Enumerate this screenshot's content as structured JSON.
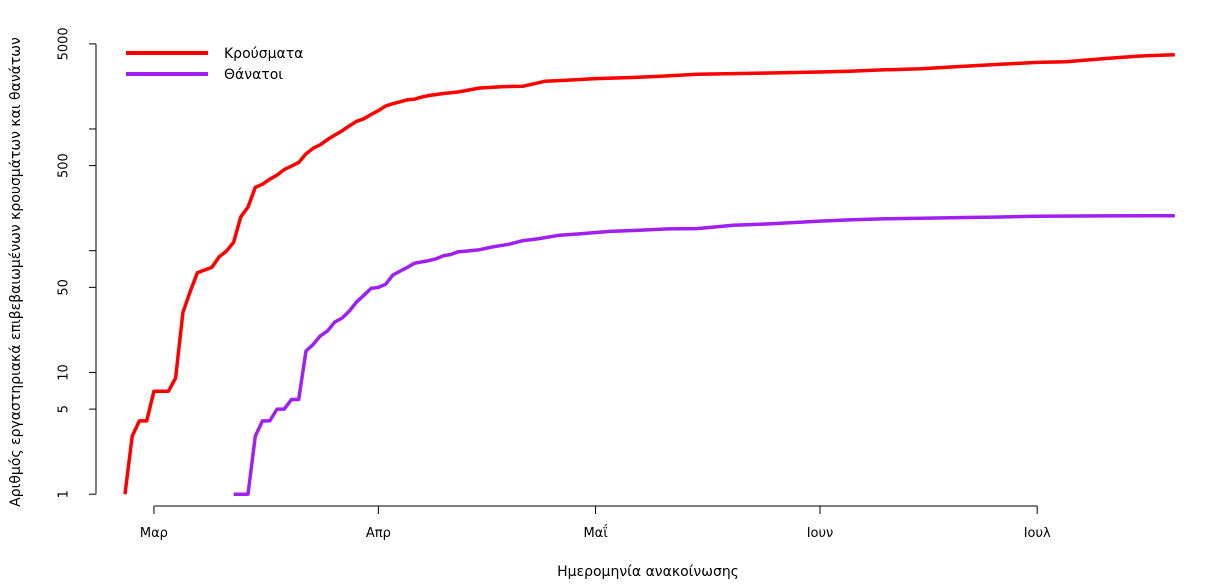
{
  "chart_data": {
    "type": "line",
    "title": "",
    "xlabel": "Ημερομηνία ανακοίνωσης",
    "ylabel": "Αριθμός εργαστηριακά επιβεβαιωμένων κρουσμάτων και θανάτων",
    "y_scale": "log",
    "ylim": [
      0.8,
      6500
    ],
    "xlim": [
      "2020-02-22",
      "2020-07-21"
    ],
    "grid": false,
    "legend_position": "top-left",
    "x_ticks": [
      {
        "date": "2020-03-01",
        "label": "Μαρ"
      },
      {
        "date": "2020-04-01",
        "label": "Απρ"
      },
      {
        "date": "2020-05-01",
        "label": "Μαΐ"
      },
      {
        "date": "2020-06-01",
        "label": "Ιουν"
      },
      {
        "date": "2020-07-01",
        "label": "Ιουλ"
      }
    ],
    "y_ticks": [
      {
        "value": 1,
        "label": "1"
      },
      {
        "value": 5,
        "label": "5"
      },
      {
        "value": 10,
        "label": "10"
      },
      {
        "value": 50,
        "label": "50"
      },
      {
        "value": 100,
        "label": ""
      },
      {
        "value": 500,
        "label": "500"
      },
      {
        "value": 1000,
        "label": ""
      },
      {
        "value": 5000,
        "label": "5000"
      }
    ],
    "series": [
      {
        "name": "Κρούσματα",
        "color": "#ff0000",
        "points": [
          [
            "2020-02-26",
            1
          ],
          [
            "2020-02-27",
            3
          ],
          [
            "2020-02-28",
            4
          ],
          [
            "2020-02-29",
            4
          ],
          [
            "2020-03-01",
            7
          ],
          [
            "2020-03-03",
            7
          ],
          [
            "2020-03-04",
            9
          ],
          [
            "2020-03-05",
            31
          ],
          [
            "2020-03-06",
            46
          ],
          [
            "2020-03-07",
            66
          ],
          [
            "2020-03-09",
            73
          ],
          [
            "2020-03-10",
            89
          ],
          [
            "2020-03-11",
            99
          ],
          [
            "2020-03-12",
            117
          ],
          [
            "2020-03-13",
            190
          ],
          [
            "2020-03-14",
            228
          ],
          [
            "2020-03-15",
            331
          ],
          [
            "2020-03-16",
            352
          ],
          [
            "2020-03-17",
            387
          ],
          [
            "2020-03-18",
            418
          ],
          [
            "2020-03-19",
            464
          ],
          [
            "2020-03-20",
            495
          ],
          [
            "2020-03-21",
            530
          ],
          [
            "2020-03-22",
            624
          ],
          [
            "2020-03-23",
            695
          ],
          [
            "2020-03-24",
            743
          ],
          [
            "2020-03-25",
            821
          ],
          [
            "2020-03-26",
            892
          ],
          [
            "2020-03-27",
            966
          ],
          [
            "2020-03-28",
            1061
          ],
          [
            "2020-03-29",
            1156
          ],
          [
            "2020-03-30",
            1212
          ],
          [
            "2020-03-31",
            1314
          ],
          [
            "2020-04-01",
            1415
          ],
          [
            "2020-04-02",
            1544
          ],
          [
            "2020-04-03",
            1613
          ],
          [
            "2020-04-04",
            1673
          ],
          [
            "2020-04-05",
            1735
          ],
          [
            "2020-04-06",
            1755
          ],
          [
            "2020-04-07",
            1832
          ],
          [
            "2020-04-08",
            1884
          ],
          [
            "2020-04-10",
            1955
          ],
          [
            "2020-04-12",
            2011
          ],
          [
            "2020-04-15",
            2170
          ],
          [
            "2020-04-18",
            2224
          ],
          [
            "2020-04-21",
            2245
          ],
          [
            "2020-04-24",
            2463
          ],
          [
            "2020-04-27",
            2517
          ],
          [
            "2020-05-01",
            2591
          ],
          [
            "2020-05-05",
            2632
          ],
          [
            "2020-05-10",
            2710
          ],
          [
            "2020-05-15",
            2810
          ],
          [
            "2020-05-20",
            2850
          ],
          [
            "2020-05-25",
            2880
          ],
          [
            "2020-06-01",
            2937
          ],
          [
            "2020-06-05",
            2980
          ],
          [
            "2020-06-10",
            3060
          ],
          [
            "2020-06-15",
            3121
          ],
          [
            "2020-06-20",
            3256
          ],
          [
            "2020-06-25",
            3376
          ],
          [
            "2020-07-01",
            3519
          ],
          [
            "2020-07-05",
            3562
          ],
          [
            "2020-07-10",
            3772
          ],
          [
            "2020-07-15",
            3964
          ],
          [
            "2020-07-20",
            4077
          ]
        ]
      },
      {
        "name": "Θάνατοι",
        "color": "#a020f0",
        "points": [
          [
            "2020-03-12",
            1
          ],
          [
            "2020-03-14",
            1
          ],
          [
            "2020-03-15",
            3
          ],
          [
            "2020-03-16",
            4
          ],
          [
            "2020-03-17",
            4
          ],
          [
            "2020-03-18",
            5
          ],
          [
            "2020-03-19",
            5
          ],
          [
            "2020-03-20",
            6
          ],
          [
            "2020-03-21",
            6
          ],
          [
            "2020-03-22",
            15
          ],
          [
            "2020-03-23",
            17
          ],
          [
            "2020-03-24",
            20
          ],
          [
            "2020-03-25",
            22
          ],
          [
            "2020-03-26",
            26
          ],
          [
            "2020-03-27",
            28
          ],
          [
            "2020-03-28",
            32
          ],
          [
            "2020-03-29",
            38
          ],
          [
            "2020-03-30",
            43
          ],
          [
            "2020-03-31",
            49
          ],
          [
            "2020-04-01",
            50
          ],
          [
            "2020-04-02",
            53
          ],
          [
            "2020-04-03",
            63
          ],
          [
            "2020-04-04",
            68
          ],
          [
            "2020-04-05",
            73
          ],
          [
            "2020-04-06",
            79
          ],
          [
            "2020-04-07",
            81
          ],
          [
            "2020-04-08",
            83
          ],
          [
            "2020-04-09",
            86
          ],
          [
            "2020-04-10",
            91
          ],
          [
            "2020-04-11",
            93
          ],
          [
            "2020-04-12",
            98
          ],
          [
            "2020-04-13",
            99
          ],
          [
            "2020-04-15",
            102
          ],
          [
            "2020-04-17",
            108
          ],
          [
            "2020-04-19",
            113
          ],
          [
            "2020-04-21",
            121
          ],
          [
            "2020-04-23",
            125
          ],
          [
            "2020-04-26",
            134
          ],
          [
            "2020-04-29",
            138
          ],
          [
            "2020-05-03",
            144
          ],
          [
            "2020-05-07",
            147
          ],
          [
            "2020-05-11",
            151
          ],
          [
            "2020-05-15",
            152
          ],
          [
            "2020-05-20",
            162
          ],
          [
            "2020-05-25",
            166
          ],
          [
            "2020-06-01",
            175
          ],
          [
            "2020-06-05",
            179
          ],
          [
            "2020-06-10",
            183
          ],
          [
            "2020-06-15",
            185
          ],
          [
            "2020-06-20",
            187
          ],
          [
            "2020-06-25",
            189
          ],
          [
            "2020-07-01",
            192
          ],
          [
            "2020-07-10",
            193
          ],
          [
            "2020-07-20",
            194
          ]
        ]
      }
    ]
  }
}
